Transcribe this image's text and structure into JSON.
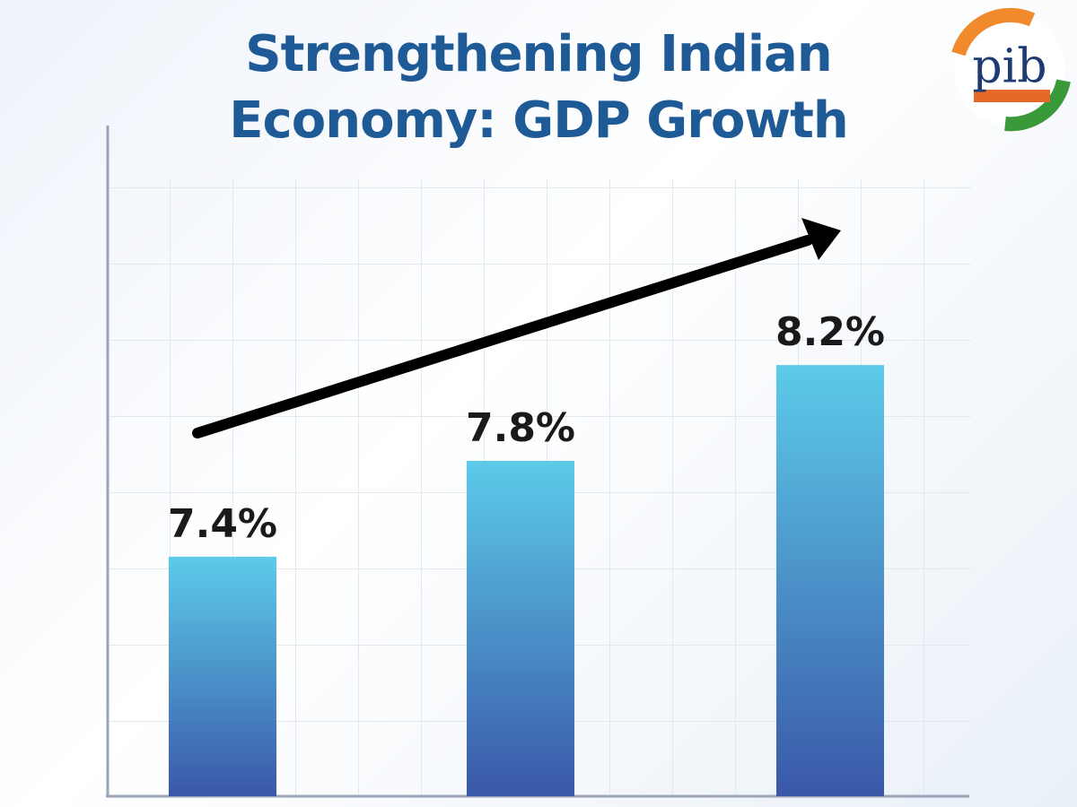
{
  "chart_data": {
    "type": "bar",
    "title": "Strengthening Indian Economy: GDP Growth",
    "categories": [
      null,
      null,
      null
    ],
    "values": [
      7.4,
      7.8,
      8.2
    ],
    "value_labels": [
      "7.4%",
      "7.8%",
      "8.2%"
    ],
    "colors": [
      "#5ccbe9",
      "#3a58a8"
    ],
    "ylim": [
      6.4,
      9.2
    ]
  },
  "logo": {
    "text": "pib"
  }
}
